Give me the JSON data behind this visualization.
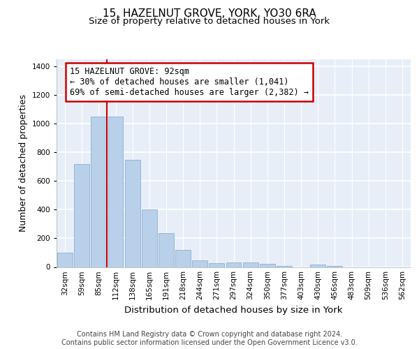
{
  "title": "15, HAZELNUT GROVE, YORK, YO30 6RA",
  "subtitle": "Size of property relative to detached houses in York",
  "xlabel": "Distribution of detached houses by size in York",
  "ylabel": "Number of detached properties",
  "categories": [
    "32sqm",
    "59sqm",
    "85sqm",
    "112sqm",
    "138sqm",
    "165sqm",
    "191sqm",
    "218sqm",
    "244sqm",
    "271sqm",
    "297sqm",
    "324sqm",
    "350sqm",
    "377sqm",
    "403sqm",
    "430sqm",
    "456sqm",
    "483sqm",
    "509sqm",
    "536sqm",
    "562sqm"
  ],
  "values": [
    100,
    720,
    1050,
    1050,
    750,
    400,
    235,
    120,
    45,
    25,
    30,
    30,
    20,
    5,
    0,
    15,
    5,
    0,
    0,
    0,
    0
  ],
  "bar_color": "#b8d0ea",
  "bar_edge_color": "#8ab0d4",
  "background_color": "#e8eef8",
  "grid_color": "#ffffff",
  "annotation_box_text": "15 HAZELNUT GROVE: 92sqm\n← 30% of detached houses are smaller (1,041)\n69% of semi-detached houses are larger (2,382) →",
  "annotation_box_color": "#ffffff",
  "annotation_box_edge_color": "#cc0000",
  "vline_x": 2.5,
  "vline_color": "#cc0000",
  "ylim": [
    0,
    1450
  ],
  "yticks": [
    0,
    200,
    400,
    600,
    800,
    1000,
    1200,
    1400
  ],
  "footer": "Contains HM Land Registry data © Crown copyright and database right 2024.\nContains public sector information licensed under the Open Government Licence v3.0.",
  "title_fontsize": 11,
  "subtitle_fontsize": 9.5,
  "ylabel_fontsize": 9,
  "xlabel_fontsize": 9.5,
  "tick_fontsize": 7.5,
  "footer_fontsize": 7,
  "ann_fontsize": 8.5
}
